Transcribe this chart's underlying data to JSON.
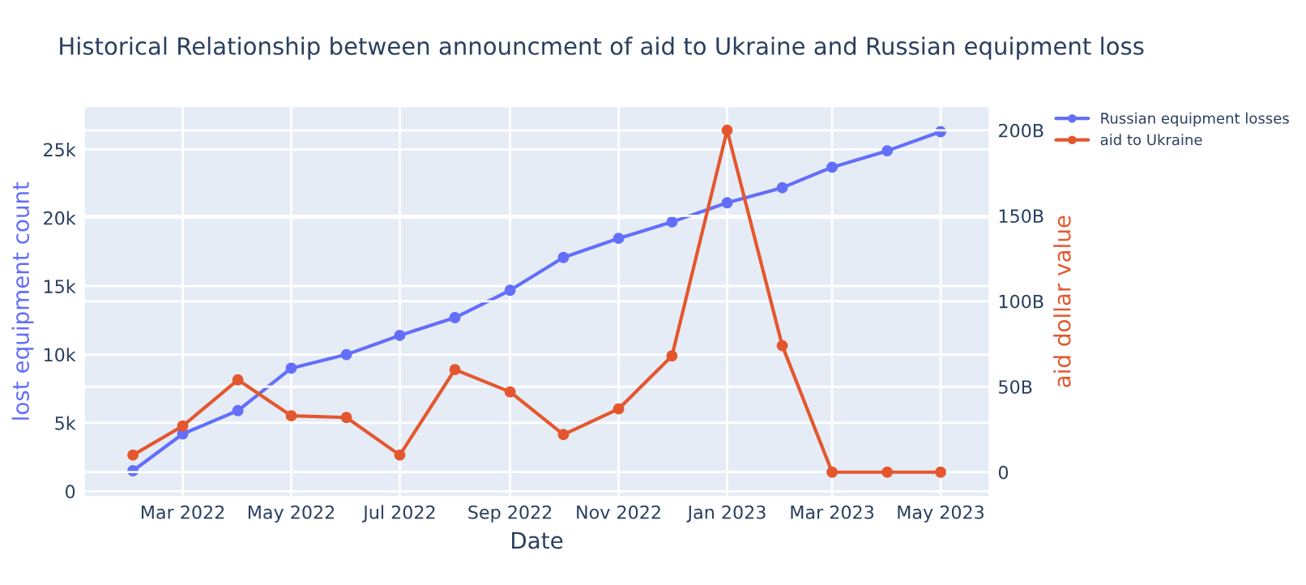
{
  "chart_data": {
    "type": "line",
    "title": "Historical Relationship between announcment of aid to Ukraine and Russian equipment loss",
    "xlabel": "Date",
    "ylabel": "lost equipment count",
    "y2label": "aid dollar value",
    "x": [
      "2022-02-01",
      "2022-03-01",
      "2022-04-01",
      "2022-05-01",
      "2022-06-01",
      "2022-07-01",
      "2022-08-01",
      "2022-09-01",
      "2022-10-01",
      "2022-11-01",
      "2022-12-01",
      "2023-01-01",
      "2023-02-01",
      "2023-03-01",
      "2023-04-01",
      "2023-05-01"
    ],
    "series": [
      {
        "name": "Russian equipment losses",
        "color": "#636efa",
        "values": [
          1500,
          4200,
          5900,
          9000,
          10000,
          11400,
          12700,
          14700,
          17100,
          18500,
          19700,
          21100,
          22200,
          23700,
          24900,
          26300
        ]
      },
      {
        "name": "aid to Ukraine",
        "color": "#e4572e",
        "axis": "y2",
        "values": [
          10,
          27,
          54,
          33,
          32,
          10,
          60,
          47,
          22,
          37,
          68,
          200,
          74,
          0,
          0,
          0
        ]
      }
    ],
    "xlim": [
      "2022-01-05",
      "2023-05-28"
    ],
    "xticks": [
      {
        "value": "2022-03-01",
        "label": "Mar 2022"
      },
      {
        "value": "2022-05-01",
        "label": "May 2022"
      },
      {
        "value": "2022-07-01",
        "label": "Jul 2022"
      },
      {
        "value": "2022-09-01",
        "label": "Sep 2022"
      },
      {
        "value": "2022-11-01",
        "label": "Nov 2022"
      },
      {
        "value": "2023-01-01",
        "label": "Jan 2023"
      },
      {
        "value": "2023-03-01",
        "label": "Mar 2023"
      },
      {
        "value": "2023-05-01",
        "label": "May 2023"
      }
    ],
    "ylim": [
      -350,
      28100
    ],
    "yticks": [
      0,
      {
        "value": 5000,
        "label": "5k"
      },
      {
        "value": 10000,
        "label": "10k"
      },
      {
        "value": 15000,
        "label": "15k"
      },
      {
        "value": 20000,
        "label": "20k"
      },
      {
        "value": 25000,
        "label": "25k"
      }
    ],
    "y2lim": [
      -14,
      213.6
    ],
    "y2ticks": [
      0,
      {
        "value": 50,
        "label": "50B"
      },
      {
        "value": 100,
        "label": "100B"
      },
      {
        "value": 150,
        "label": "150B"
      },
      {
        "value": 200,
        "label": "200B"
      }
    ],
    "grid": true,
    "legend": "top right",
    "marker": "circle",
    "line_style": "solid"
  }
}
